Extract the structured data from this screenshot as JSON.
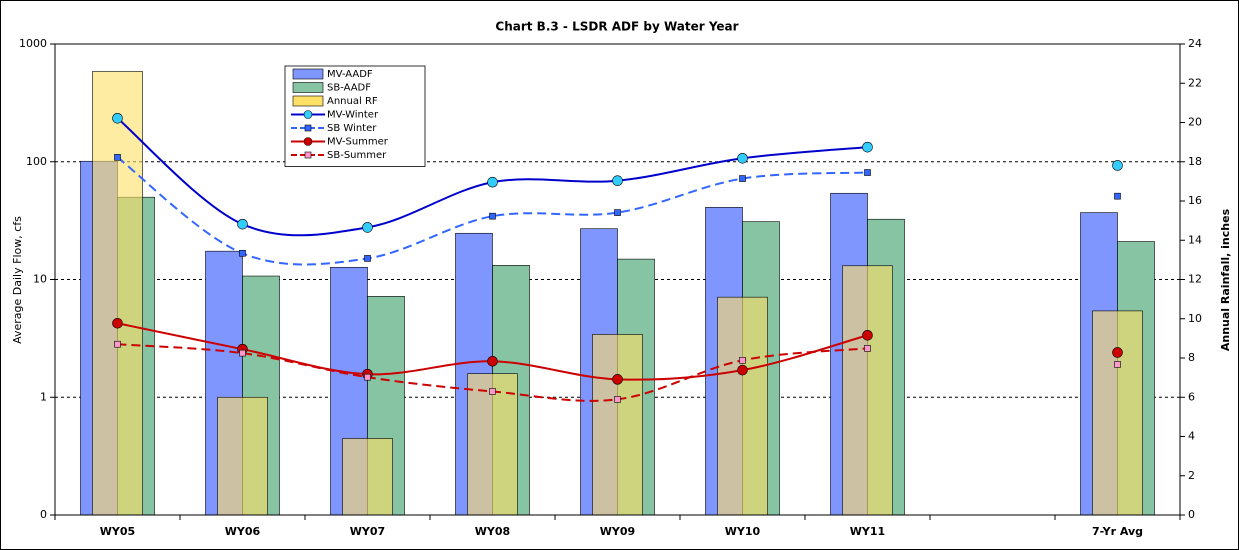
{
  "chart_data": {
    "type": "bar",
    "title": "Chart B.3 - LSDR ADF by Water Year",
    "y_label": "Average Daily Flow, cfs",
    "y2_label": "Annual Rainfall, inches",
    "categories": [
      "WY05",
      "WY06",
      "WY07",
      "WY08",
      "WY09",
      "WY10",
      "WY11",
      null,
      "7-Yr Avg"
    ],
    "ylog": true,
    "ylim": [
      0.1,
      1000
    ],
    "yticks": [
      {
        "value": 0.1,
        "label": "0"
      },
      1,
      10,
      100,
      1000
    ],
    "y2lim": [
      0,
      24
    ],
    "y2ticks": [
      0,
      2,
      4,
      6,
      8,
      10,
      12,
      14,
      16,
      18,
      20,
      22,
      24
    ],
    "grid": true,
    "series": [
      {
        "name": "MV-AADF",
        "type": "bar",
        "color": "#7f96ff",
        "values": [
          101,
          17.4,
          12.7,
          24.7,
          27,
          41,
          54,
          null,
          37
        ]
      },
      {
        "name": "SB-AADF",
        "type": "bar",
        "color": "#86c4a4",
        "values": [
          50,
          10.7,
          7.2,
          13.2,
          14.9,
          31,
          32.5,
          null,
          21
        ]
      },
      {
        "name": "Annual RF",
        "type": "bar",
        "axis": "y2",
        "color": "#ffe066",
        "values": [
          22.6,
          6.0,
          3.9,
          7.2,
          9.2,
          11.1,
          12.7,
          null,
          10.4
        ]
      },
      {
        "name": "MV-Winter",
        "type": "line",
        "color": "#0000cc",
        "marker": "circle",
        "marker_color": "#33ccff",
        "values": [
          234,
          29.5,
          27.7,
          67,
          69,
          107,
          133,
          null,
          93
        ]
      },
      {
        "name": "SB Winter",
        "type": "line",
        "color": "#3366ff",
        "dash": true,
        "marker": "square",
        "marker_color": "#3366ff",
        "values": [
          109,
          16.7,
          15.1,
          34.5,
          37,
          72,
          81,
          null,
          51
        ]
      },
      {
        "name": "MV-Summer",
        "type": "line",
        "color": "#cc0000",
        "marker": "circle",
        "marker_color": "#cc0000",
        "values": [
          4.25,
          2.56,
          1.57,
          2.02,
          1.42,
          1.7,
          3.36,
          null,
          2.4
        ]
      },
      {
        "name": "SB-Summer",
        "type": "line",
        "color": "#cc0000",
        "dash": true,
        "marker": "square",
        "marker_color": "#ff99cc",
        "values": [
          2.82,
          2.37,
          1.48,
          1.12,
          0.96,
          2.06,
          2.6,
          null,
          1.9
        ]
      }
    ]
  }
}
